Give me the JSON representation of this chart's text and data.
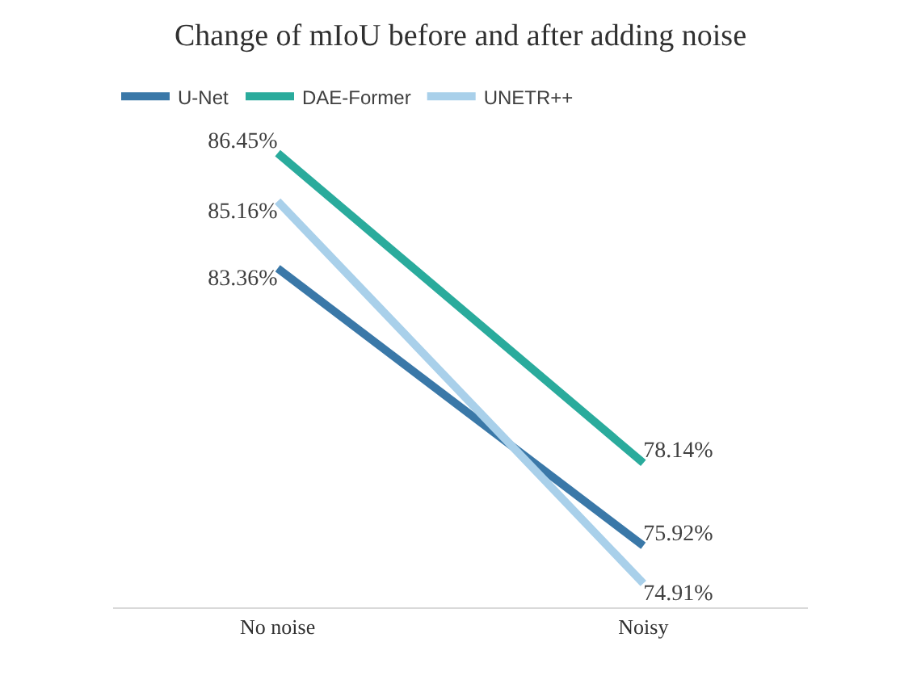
{
  "chart_data": {
    "type": "line",
    "title": "Change of mIoU before and after adding noise",
    "categories": [
      "No noise",
      "Noisy"
    ],
    "series": [
      {
        "name": "U-Net",
        "color": "#3a78a8",
        "values": [
          83.36,
          75.92
        ],
        "value_labels": [
          "83.36%",
          "75.92%"
        ]
      },
      {
        "name": "DAE-Former",
        "color": "#2aab9c",
        "values": [
          86.45,
          78.14
        ],
        "value_labels": [
          "86.45%",
          "78.14%"
        ]
      },
      {
        "name": "UNETR++",
        "color": "#a9d0ea",
        "values": [
          85.16,
          74.91
        ],
        "value_labels": [
          "85.16%",
          "74.91%"
        ]
      }
    ],
    "legend": "top left",
    "marker": "none",
    "line_style": "solid"
  }
}
